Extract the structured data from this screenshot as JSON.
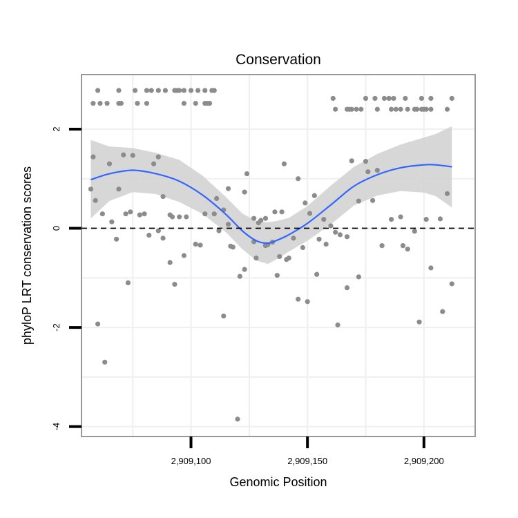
{
  "chart_data": {
    "type": "scatter",
    "title": "Conservation",
    "xlabel": "Genomic Position",
    "ylabel": "phyloP LRT conservation scores",
    "xlim": [
      2909053,
      2909222
    ],
    "ylim": [
      -4.2,
      3.1
    ],
    "x_ticks": [
      2909100,
      2909150,
      2909200
    ],
    "x_tick_labels": [
      "2,909,100",
      "2,909,150",
      "2,909,200"
    ],
    "y_ticks": [
      -4,
      -2,
      0,
      2
    ],
    "y_tick_labels": [
      "-4",
      "-2",
      "0",
      "2"
    ],
    "grid": true,
    "reference_line_y": 0,
    "colors": {
      "points": "#8c8c8c",
      "smooth_line": "#3366ff",
      "ribbon": "#d3d3d3",
      "grid": "#f0f0f0",
      "frame": "#7f7f7f",
      "reference_line": "#000000"
    },
    "points": [
      [
        2909060,
        2.78
      ],
      [
        2909069,
        2.78
      ],
      [
        2909076,
        2.78
      ],
      [
        2909081,
        2.78
      ],
      [
        2909083,
        2.78
      ],
      [
        2909086,
        2.78
      ],
      [
        2909089,
        2.78
      ],
      [
        2909093,
        2.78
      ],
      [
        2909094,
        2.78
      ],
      [
        2909095,
        2.78
      ],
      [
        2909097,
        2.78
      ],
      [
        2909100,
        2.78
      ],
      [
        2909103,
        2.78
      ],
      [
        2909106,
        2.78
      ],
      [
        2909109,
        2.78
      ],
      [
        2909110,
        2.78
      ],
      [
        2909058,
        2.52
      ],
      [
        2909061,
        2.52
      ],
      [
        2909064,
        2.52
      ],
      [
        2909069,
        2.52
      ],
      [
        2909070,
        2.52
      ],
      [
        2909077,
        2.52
      ],
      [
        2909081,
        2.52
      ],
      [
        2909097,
        2.52
      ],
      [
        2909102,
        2.52
      ],
      [
        2909106,
        2.52
      ],
      [
        2909107,
        2.52
      ],
      [
        2909108,
        2.52
      ],
      [
        2909161,
        2.62
      ],
      [
        2909175,
        2.62
      ],
      [
        2909179,
        2.62
      ],
      [
        2909183,
        2.62
      ],
      [
        2909185,
        2.62
      ],
      [
        2909187,
        2.62
      ],
      [
        2909192,
        2.62
      ],
      [
        2909199,
        2.62
      ],
      [
        2909203,
        2.62
      ],
      [
        2909212,
        2.62
      ],
      [
        2909162,
        2.4
      ],
      [
        2909167,
        2.4
      ],
      [
        2909168,
        2.4
      ],
      [
        2909169,
        2.4
      ],
      [
        2909171,
        2.4
      ],
      [
        2909173,
        2.4
      ],
      [
        2909180,
        2.4
      ],
      [
        2909186,
        2.4
      ],
      [
        2909188,
        2.4
      ],
      [
        2909190,
        2.4
      ],
      [
        2909193,
        2.4
      ],
      [
        2909196,
        2.4
      ],
      [
        2909197,
        2.4
      ],
      [
        2909199,
        2.4
      ],
      [
        2909200,
        2.4
      ],
      [
        2909201,
        2.4
      ],
      [
        2909203,
        2.4
      ],
      [
        2909210,
        2.4
      ],
      [
        2909058,
        1.44
      ],
      [
        2909065,
        1.3
      ],
      [
        2909071,
        1.48
      ],
      [
        2909075,
        1.47
      ],
      [
        2909084,
        1.3
      ],
      [
        2909086,
        1.44
      ],
      [
        2909057,
        0.79
      ],
      [
        2909059,
        0.56
      ],
      [
        2909062,
        0.29
      ],
      [
        2909066,
        0.13
      ],
      [
        2909069,
        0.79
      ],
      [
        2909072,
        0.29
      ],
      [
        2909074,
        0.33
      ],
      [
        2909078,
        0.27
      ],
      [
        2909080,
        0.29
      ],
      [
        2909088,
        0.64
      ],
      [
        2909091,
        0.27
      ],
      [
        2909092,
        0.23
      ],
      [
        2909095,
        0.23
      ],
      [
        2909098,
        0.23
      ],
      [
        2909106,
        0.29
      ],
      [
        2909110,
        0.29
      ],
      [
        2909111,
        0.6
      ],
      [
        2909114,
        0.37
      ],
      [
        2909116,
        0.8
      ],
      [
        2909123,
        0.73
      ],
      [
        2909127,
        0.2
      ],
      [
        2909132,
        0.2
      ],
      [
        2909136,
        0.33
      ],
      [
        2909139,
        0.33
      ],
      [
        2909068,
        -0.22
      ],
      [
        2909082,
        -0.14
      ],
      [
        2909086,
        -0.05
      ],
      [
        2909088,
        -0.2
      ],
      [
        2909091,
        -0.69
      ],
      [
        2909097,
        -0.55
      ],
      [
        2909102,
        -0.32
      ],
      [
        2909104,
        -0.34
      ],
      [
        2909112,
        -0.05
      ],
      [
        2909116,
        0.08
      ],
      [
        2909117,
        -0.36
      ],
      [
        2909118,
        -0.38
      ],
      [
        2909121,
        -0.97
      ],
      [
        2909123,
        -0.83
      ],
      [
        2909124,
        1.1
      ],
      [
        2909127,
        -0.27
      ],
      [
        2909128,
        -0.6
      ],
      [
        2909129,
        0.11
      ],
      [
        2909130,
        0.16
      ],
      [
        2909132,
        -0.35
      ],
      [
        2909133,
        -0.33
      ],
      [
        2909135,
        -0.28
      ],
      [
        2909137,
        -0.95
      ],
      [
        2909138,
        -0.57
      ],
      [
        2909140,
        1.3
      ],
      [
        2909141,
        -0.63
      ],
      [
        2909142,
        -0.6
      ],
      [
        2909144,
        -0.2
      ],
      [
        2909146,
        1.0
      ],
      [
        2909148,
        -0.39
      ],
      [
        2909149,
        0.51
      ],
      [
        2909151,
        0.3
      ],
      [
        2909153,
        0.66
      ],
      [
        2909155,
        -0.22
      ],
      [
        2909157,
        0.18
      ],
      [
        2909158,
        -0.32
      ],
      [
        2909160,
        0.05
      ],
      [
        2909162,
        -0.08
      ],
      [
        2909164,
        -0.13
      ],
      [
        2909167,
        -0.17
      ],
      [
        2909169,
        1.36
      ],
      [
        2909172,
        0.55
      ],
      [
        2909175,
        1.35
      ],
      [
        2909176,
        1.14
      ],
      [
        2909178,
        0.56
      ],
      [
        2909180,
        1.17
      ],
      [
        2909182,
        -0.35
      ],
      [
        2909186,
        0.18
      ],
      [
        2909190,
        0.23
      ],
      [
        2909191,
        -0.35
      ],
      [
        2909193,
        -0.42
      ],
      [
        2909196,
        -0.06
      ],
      [
        2909201,
        0.18
      ],
      [
        2909203,
        -0.8
      ],
      [
        2909207,
        0.19
      ],
      [
        2909210,
        0.7
      ],
      [
        2909212,
        -1.12
      ],
      [
        2909060,
        -1.93
      ],
      [
        2909063,
        -2.7
      ],
      [
        2909073,
        -1.1
      ],
      [
        2909093,
        -1.13
      ],
      [
        2909114,
        -1.77
      ],
      [
        2909120,
        -3.85
      ],
      [
        2909146,
        -1.43
      ],
      [
        2909150,
        -1.48
      ],
      [
        2909154,
        -0.93
      ],
      [
        2909163,
        -1.95
      ],
      [
        2909167,
        -1.2
      ],
      [
        2909172,
        -0.98
      ],
      [
        2909198,
        -1.89
      ],
      [
        2909208,
        -1.68
      ]
    ],
    "smooth": {
      "x": [
        2909057,
        2909065,
        2909075,
        2909085,
        2909095,
        2909105,
        2909115,
        2909122,
        2909128,
        2909133,
        2909137,
        2909142,
        2909150,
        2909160,
        2909170,
        2909180,
        2909190,
        2909200,
        2909205,
        2909212
      ],
      "y": [
        0.98,
        1.1,
        1.17,
        1.1,
        0.95,
        0.67,
        0.28,
        -0.05,
        -0.25,
        -0.3,
        -0.24,
        -0.13,
        0.1,
        0.47,
        0.85,
        1.08,
        1.22,
        1.28,
        1.28,
        1.24
      ],
      "lower": [
        0.2,
        0.55,
        0.73,
        0.69,
        0.53,
        0.29,
        -0.08,
        -0.42,
        -0.65,
        -0.72,
        -0.62,
        -0.47,
        -0.25,
        0.08,
        0.46,
        0.66,
        0.75,
        0.72,
        0.65,
        0.42
      ],
      "upper": [
        1.78,
        1.65,
        1.62,
        1.52,
        1.38,
        1.06,
        0.63,
        0.3,
        0.15,
        0.12,
        0.15,
        0.21,
        0.45,
        0.86,
        1.24,
        1.5,
        1.69,
        1.83,
        1.9,
        2.06
      ]
    }
  }
}
